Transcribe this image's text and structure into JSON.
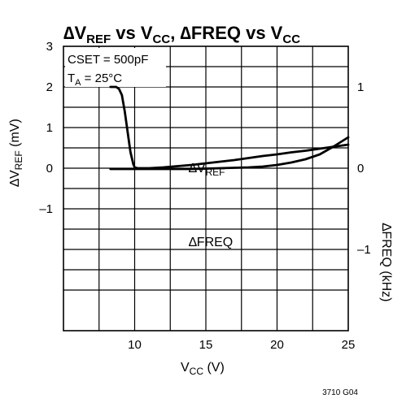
{
  "chart_data": {
    "type": "line",
    "title": {
      "t1": "∆V",
      "t1sub": "REF",
      "t2": " vs V",
      "t2sub": "CC",
      "t3": ", ∆FREQ vs V",
      "t3sub": "CC"
    },
    "xlabel": {
      "main": "V",
      "sub": "CC",
      "rest": " (V)"
    },
    "ylabel_left": {
      "pre": "∆V",
      "sub": "REF",
      "rest": " (mV)"
    },
    "ylabel_right": "∆FREQ (kHz)",
    "x_range": [
      5,
      25
    ],
    "x_ticks": [
      "10",
      "15",
      "20",
      "25"
    ],
    "y_left_range": [
      -4,
      3
    ],
    "y_left_ticks": [
      "3",
      "2",
      "1",
      "0",
      "–1"
    ],
    "y_right_range": [
      -2,
      1.5
    ],
    "y_right_ticks": [
      "1",
      "0",
      "–1"
    ],
    "grid": true,
    "conditions": {
      "cset": "CSET = 500pF",
      "ta_pre": "T",
      "ta_sub": "A",
      "ta_rest": " = 25°C"
    },
    "footer_code": "3710 G04",
    "series": [
      {
        "name": "∆V",
        "name_sub": "REF",
        "axis": "left",
        "points": [
          [
            8.3,
            2.0
          ],
          [
            8.7,
            2.0
          ],
          [
            8.9,
            1.95
          ],
          [
            9.1,
            1.8
          ],
          [
            9.3,
            1.4
          ],
          [
            9.5,
            0.9
          ],
          [
            9.7,
            0.4
          ],
          [
            9.9,
            0.1
          ],
          [
            10.0,
            0.02
          ],
          [
            10.2,
            0.0
          ],
          [
            11,
            0.0
          ],
          [
            12,
            0.02
          ],
          [
            13,
            0.05
          ],
          [
            14,
            0.08
          ],
          [
            15,
            0.12
          ],
          [
            16,
            0.16
          ],
          [
            17,
            0.2
          ],
          [
            18,
            0.25
          ],
          [
            19,
            0.3
          ],
          [
            20,
            0.34
          ],
          [
            21,
            0.39
          ],
          [
            22,
            0.43
          ],
          [
            23,
            0.48
          ],
          [
            24,
            0.53
          ],
          [
            25,
            0.58
          ]
        ]
      },
      {
        "name": "∆FREQ",
        "axis": "right",
        "points": [
          [
            8.3,
            -0.01
          ],
          [
            10,
            -0.01
          ],
          [
            12,
            -0.01
          ],
          [
            14,
            -0.01
          ],
          [
            16,
            0.0
          ],
          [
            18,
            0.01
          ],
          [
            19,
            0.02
          ],
          [
            20,
            0.04
          ],
          [
            21,
            0.07
          ],
          [
            22,
            0.11
          ],
          [
            23,
            0.17
          ],
          [
            24,
            0.27
          ],
          [
            25,
            0.38
          ]
        ]
      }
    ]
  }
}
